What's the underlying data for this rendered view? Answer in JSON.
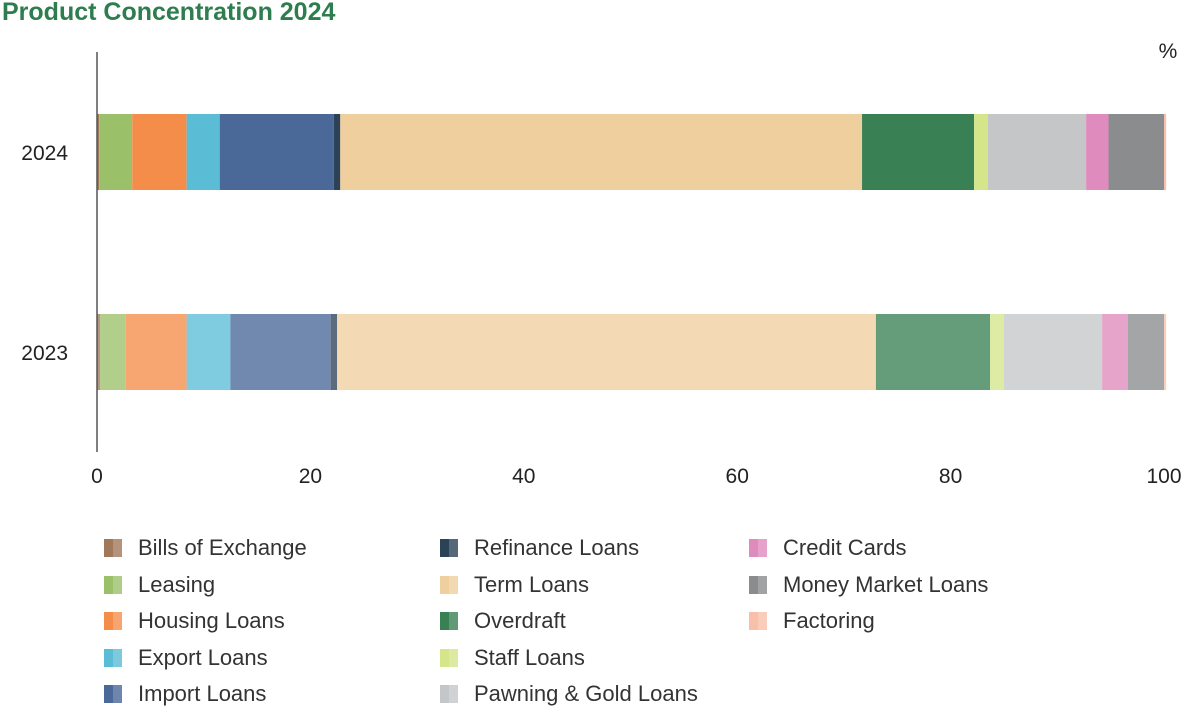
{
  "chart_data": {
    "type": "bar",
    "orientation": "horizontal",
    "stacked": true,
    "title": "Product Concentration 2024",
    "unit": "%",
    "categories": [
      "2024",
      "2023"
    ],
    "xlim": [
      0,
      100
    ],
    "xticks": [
      0,
      20,
      40,
      60,
      80,
      100
    ],
    "grid": false,
    "legend_position": "bottom",
    "series": [
      {
        "name": "Bills of Exchange",
        "color": "#a0785a",
        "values": [
          0.2,
          0.3
        ]
      },
      {
        "name": "Leasing",
        "color": "#9bc06a",
        "values": [
          3.1,
          2.4
        ]
      },
      {
        "name": "Housing Loans",
        "color": "#f58d4a",
        "values": [
          5.1,
          5.7
        ]
      },
      {
        "name": "Export Loans",
        "color": "#5bbcd6",
        "values": [
          3.1,
          4.1
        ]
      },
      {
        "name": "Import Loans",
        "color": "#4a6898",
        "values": [
          10.7,
          9.4
        ]
      },
      {
        "name": "Refinance Loans",
        "color": "#2c4257",
        "values": [
          0.6,
          0.6
        ]
      },
      {
        "name": "Term Loans",
        "color": "#f0cf9f",
        "values": [
          48.9,
          50.5
        ]
      },
      {
        "name": "Overdraft",
        "color": "#3a8055",
        "values": [
          10.5,
          10.7
        ]
      },
      {
        "name": "Staff Loans",
        "color": "#d4e58a",
        "values": [
          1.3,
          1.3
        ]
      },
      {
        "name": "Pawning & Gold Loans",
        "color": "#c5c6c8",
        "values": [
          9.2,
          9.2
        ]
      },
      {
        "name": "Credit Cards",
        "color": "#e08bbd",
        "values": [
          2.1,
          2.4
        ]
      },
      {
        "name": "Money Market Loans",
        "color": "#8b8c8e",
        "values": [
          5.2,
          3.4
        ]
      },
      {
        "name": "Factoring",
        "color": "#f8c0aa",
        "values": [
          0.2,
          0.2
        ]
      }
    ]
  }
}
